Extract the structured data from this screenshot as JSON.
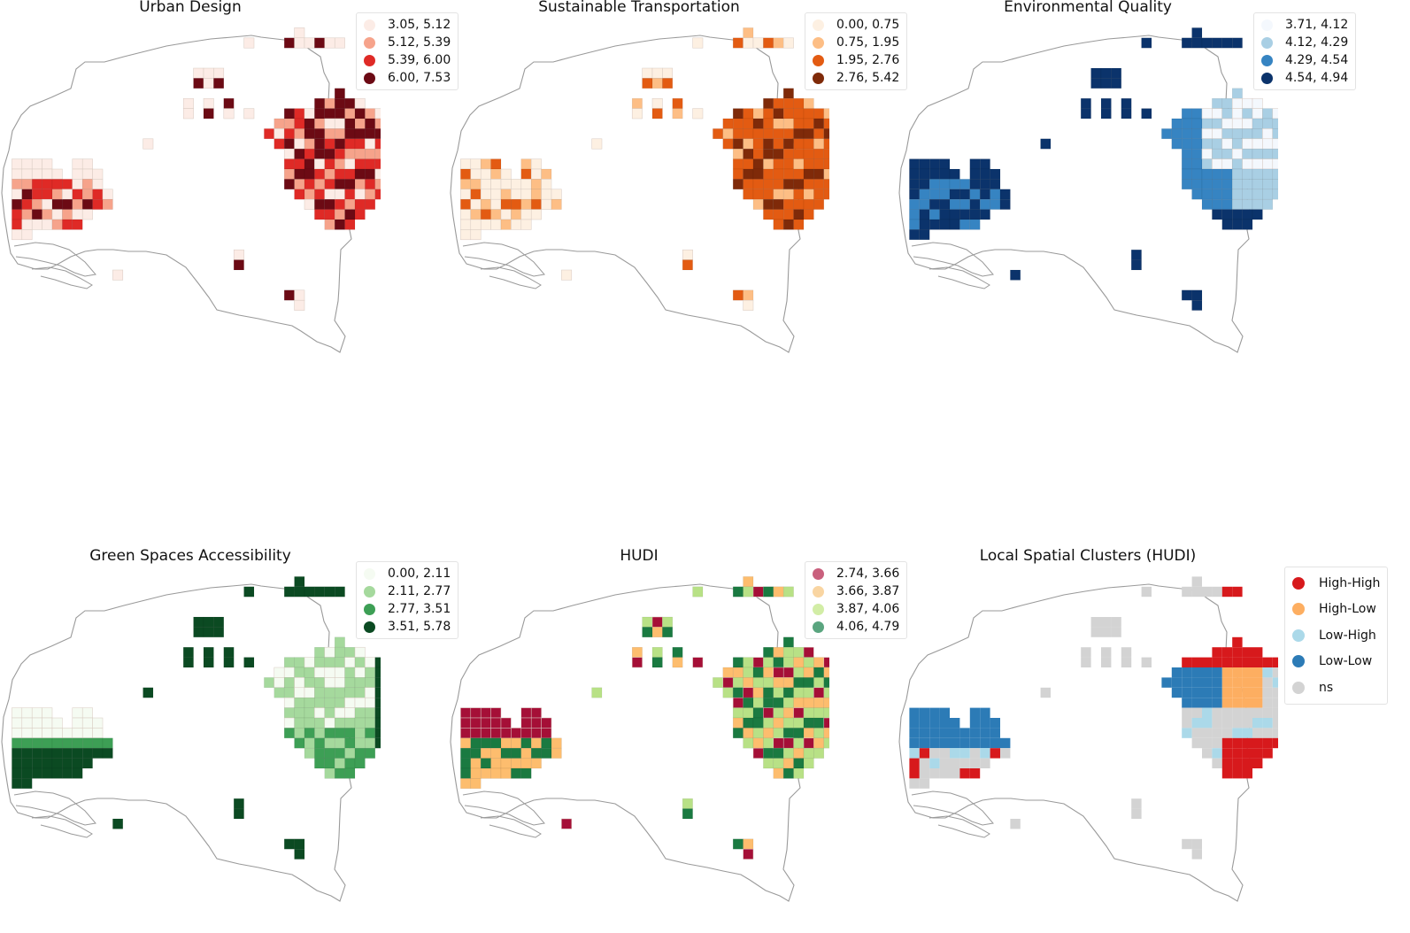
{
  "panels": [
    {
      "key": "urban",
      "title": "Urban Design",
      "pattern": "urban",
      "bins": [
        {
          "label": "3.05, 5.12",
          "color": "#fcece6"
        },
        {
          "label": "5.12, 5.39",
          "color": "#f6a38b"
        },
        {
          "label": "5.39, 6.00",
          "color": "#df2a26"
        },
        {
          "label": "6.00, 7.53",
          "color": "#6c0a14"
        }
      ]
    },
    {
      "key": "transport",
      "title": "Sustainable Transportation",
      "pattern": "transport",
      "bins": [
        {
          "label": "0.00, 0.75",
          "color": "#fdf0e2"
        },
        {
          "label": "0.75, 1.95",
          "color": "#fdbe85"
        },
        {
          "label": "1.95, 2.76",
          "color": "#e35b12"
        },
        {
          "label": "2.76, 5.42",
          "color": "#7f2a09"
        }
      ]
    },
    {
      "key": "env",
      "title": "Environmental Quality",
      "pattern": "env",
      "bins": [
        {
          "label": "3.71, 4.12",
          "color": "#f4f8fd"
        },
        {
          "label": "4.12, 4.29",
          "color": "#a9cfe4"
        },
        {
          "label": "4.29, 4.54",
          "color": "#3684c2"
        },
        {
          "label": "4.54, 4.94",
          "color": "#0b336b"
        }
      ]
    },
    {
      "key": "green",
      "title": "Green Spaces Accessibility",
      "pattern": "green",
      "bins": [
        {
          "label": "0.00, 2.11",
          "color": "#f5fbf2"
        },
        {
          "label": "2.11, 2.77",
          "color": "#a5d99d"
        },
        {
          "label": "2.77, 3.51",
          "color": "#3d9f55"
        },
        {
          "label": "3.51, 5.78",
          "color": "#0b4a22"
        }
      ]
    },
    {
      "key": "hudi",
      "title": "HUDI",
      "pattern": "hudi",
      "bins": [
        {
          "label": "2.74, 3.66",
          "color": "#c9607d"
        },
        {
          "label": "3.66, 3.87",
          "color": "#f9d5a2"
        },
        {
          "label": "3.87, 4.06",
          "color": "#d2eda6"
        },
        {
          "label": "4.06, 4.79",
          "color": "#5aa57f"
        }
      ],
      "cell_colors": [
        "#a50f37",
        "#fdbd6e",
        "#b8e186",
        "#1a7a41"
      ]
    },
    {
      "key": "lisa",
      "title": "Local Spatial Clusters (HUDI)",
      "pattern": "lisa",
      "bins": [
        {
          "label": "High-High",
          "color": "#d7191c"
        },
        {
          "label": "High-Low",
          "color": "#fdae61"
        },
        {
          "label": "Low-High",
          "color": "#abd9e9"
        },
        {
          "label": "Low-Low",
          "color": "#2c7bb6"
        },
        {
          "label": "ns",
          "color": "#d3d3d3"
        }
      ]
    }
  ]
}
